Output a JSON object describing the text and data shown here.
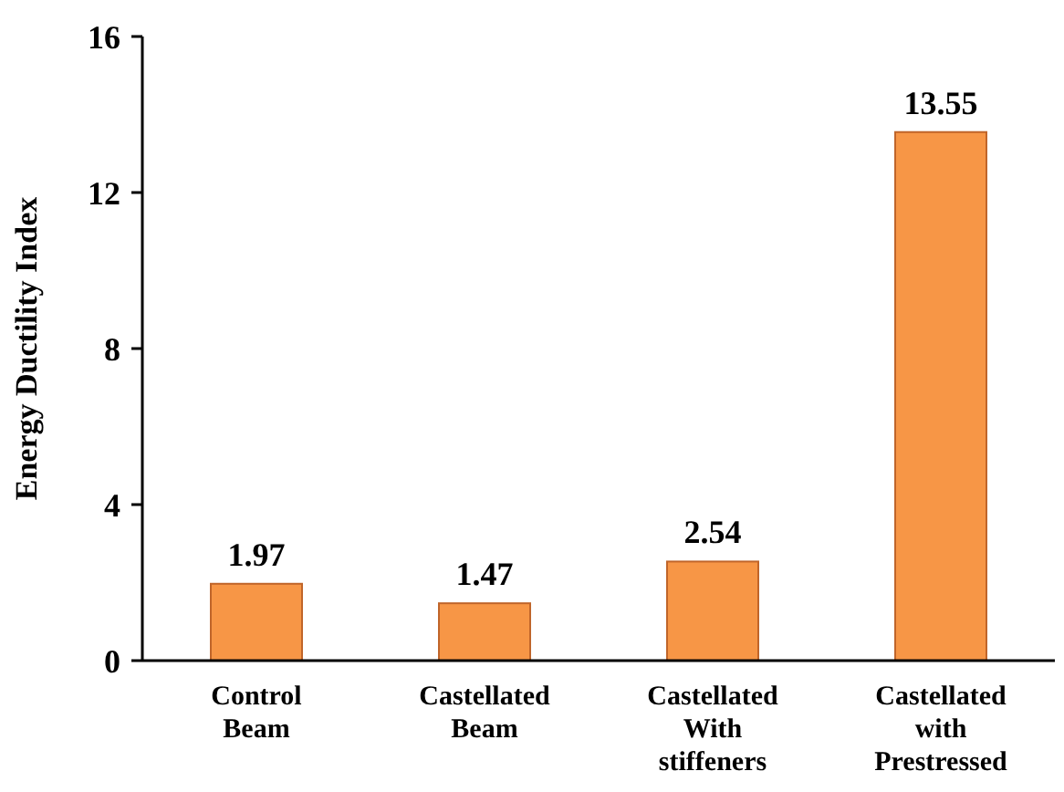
{
  "chart_data": {
    "type": "bar",
    "ylabel": "Energy Ductility Index",
    "categories": [
      "Control\nBeam",
      "Castellated\nBeam",
      "Castellated\nWith\nstiffeners",
      "Castellated\nwith\nPrestressed"
    ],
    "values": [
      1.97,
      1.47,
      2.54,
      13.55
    ],
    "color": "#f79646",
    "ylim": [
      0,
      16
    ],
    "yticks": [
      0,
      4,
      8,
      12,
      16
    ],
    "data_labels": true,
    "grid": false
  }
}
